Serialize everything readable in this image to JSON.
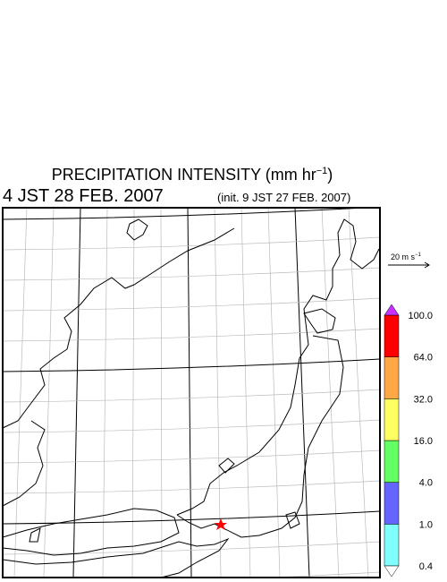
{
  "header": {
    "title": "PRECIPITATION INTENSITY (mm hr",
    "title_superscript": "−1",
    "title_end": ")",
    "valid_time": "4 JST 28 FEB. 2007",
    "init_time": "(init. 9 JST 27 FEB. 2007)"
  },
  "vector_scale": {
    "label": "20 m s",
    "superscript": "−1"
  },
  "colorbar": {
    "levels": [
      {
        "value": 0.4,
        "label": "0.4"
      },
      {
        "value": 1,
        "label": "1.0"
      },
      {
        "value": 4,
        "label": "4.0"
      },
      {
        "value": 16,
        "label": "16.0"
      },
      {
        "value": 32,
        "label": "32.0"
      },
      {
        "value": 64,
        "label": "64.0"
      },
      {
        "value": 100,
        "label": "100.0"
      }
    ],
    "colors": [
      "#80ffff",
      "#6464ff",
      "#64ff64",
      "#ffff64",
      "#ffa846",
      "#ff0000"
    ],
    "over_color": "#c832ff",
    "under_color": "#ffffff"
  }
}
